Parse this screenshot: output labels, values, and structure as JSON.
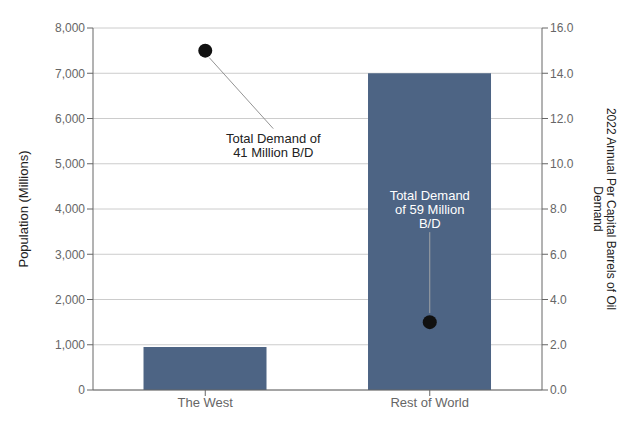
{
  "chart_data": {
    "type": "bar",
    "categories": [
      "The West",
      "Rest of World"
    ],
    "series": [
      {
        "type": "bar",
        "color": "#4d6484",
        "values": [
          950,
          7000
        ]
      },
      {
        "type": "scatter",
        "color": "#111111",
        "values": [
          7500,
          1500
        ]
      }
    ],
    "ylabel": "Population (Millions)",
    "y2label": "2022 Annual Per Capital Barrels of Oil\nDemand",
    "ylim": [
      0,
      8000
    ],
    "yticks": [
      0,
      {
        "value": 1000,
        "label": "1,000"
      },
      {
        "value": 2000,
        "label": "2,000"
      },
      {
        "value": 3000,
        "label": "3,000"
      },
      {
        "value": 4000,
        "label": "4,000"
      },
      {
        "value": 5000,
        "label": "5,000"
      },
      {
        "value": 6000,
        "label": "6,000"
      },
      {
        "value": 7000,
        "label": "7,000"
      },
      {
        "value": 8000,
        "label": "8,000"
      }
    ],
    "y2lim": [
      0,
      16
    ],
    "y2ticks": [
      {
        "value": 0,
        "label": "0.0"
      },
      {
        "value": 2,
        "label": "2.0"
      },
      {
        "value": 4,
        "label": "4.0"
      },
      {
        "value": 6,
        "label": "6.0"
      },
      {
        "value": 8,
        "label": "8.0"
      },
      {
        "value": 10,
        "label": "10.0"
      },
      {
        "value": 12,
        "label": "12.0"
      },
      {
        "value": 14,
        "label": "14.0"
      },
      {
        "value": 16,
        "label": "16.0"
      }
    ],
    "annotations": [
      {
        "x": "The West",
        "text": "Total Demand of\n41 Million B/D"
      },
      {
        "x": "Rest of World",
        "text": "Total Demand\nof 59 Million\nB/D"
      }
    ],
    "grid": true
  }
}
